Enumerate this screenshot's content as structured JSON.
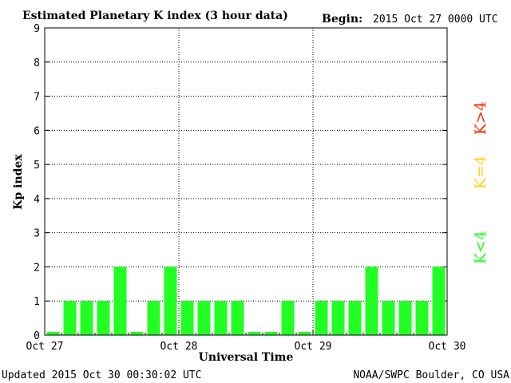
{
  "header": {
    "title": "Estimated Planetary K index (3 hour data)",
    "begin_label": "Begin:",
    "begin_value": "2015 Oct 27 0000 UTC"
  },
  "footer": {
    "updated": "Updated 2015 Oct 30 00:30:02 UTC",
    "credit": "NOAA/SWPC Boulder, CO USA"
  },
  "legend": [
    {
      "label": "K>4",
      "color": "#ff2a00"
    },
    {
      "label": "K=4",
      "color": "#ffd21e"
    },
    {
      "label": "K<4",
      "color": "#22ff22"
    }
  ],
  "chart_data": {
    "type": "bar",
    "xlabel": "Universal Time",
    "ylabel": "Kp index",
    "ylim": [
      0,
      9
    ],
    "yticks": [
      0,
      1,
      2,
      3,
      4,
      5,
      6,
      7,
      8,
      9
    ],
    "xticks": [
      "Oct 27",
      "Oct 28",
      "Oct 29",
      "Oct 30"
    ],
    "grid": true,
    "bar_color": "#22ff22",
    "values": [
      0,
      1,
      1,
      1,
      2,
      0,
      1,
      2,
      1,
      1,
      1,
      1,
      0,
      0,
      1,
      0,
      1,
      1,
      1,
      2,
      1,
      1,
      1,
      2
    ]
  }
}
